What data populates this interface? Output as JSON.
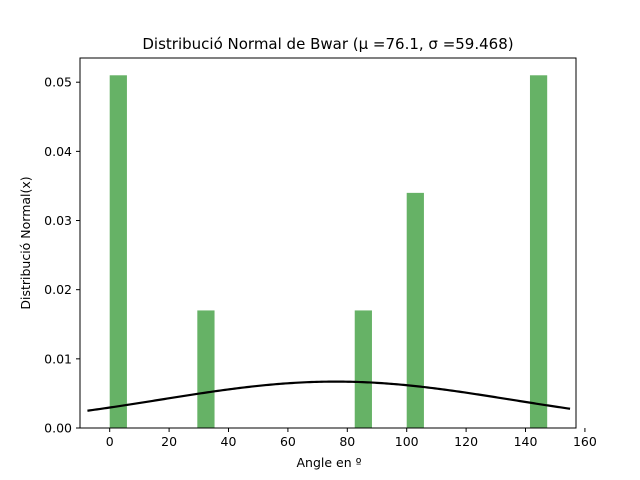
{
  "chart_data": {
    "type": "bar",
    "title": "Distribució Normal de Bwar (μ =76.1, σ =59.468)",
    "xlabel": "Angle en º",
    "ylabel": "Distribució Normal(x)",
    "xlim": [
      -10,
      157
    ],
    "ylim": [
      0,
      0.0535
    ],
    "x_ticks": [
      0,
      20,
      40,
      60,
      80,
      100,
      120,
      140,
      160
    ],
    "y_ticks": [
      0.0,
      0.01,
      0.02,
      0.03,
      0.04,
      0.05
    ],
    "y_tick_labels": [
      "0.00",
      "0.01",
      "0.02",
      "0.03",
      "0.04",
      "0.05"
    ],
    "bar_color": "#66b266",
    "curve_color": "#000000",
    "bars": [
      {
        "x0": 0.0,
        "x1": 5.8,
        "value": 0.051
      },
      {
        "x0": 29.5,
        "x1": 35.3,
        "value": 0.017
      },
      {
        "x0": 82.5,
        "x1": 88.3,
        "value": 0.017
      },
      {
        "x0": 100.0,
        "x1": 105.8,
        "value": 0.034
      },
      {
        "x0": 141.5,
        "x1": 147.3,
        "value": 0.051
      }
    ],
    "normal_curve": {
      "mu": 76.1,
      "sigma": 59.468,
      "x_range": [
        -7.5,
        155
      ]
    },
    "grid": false
  }
}
